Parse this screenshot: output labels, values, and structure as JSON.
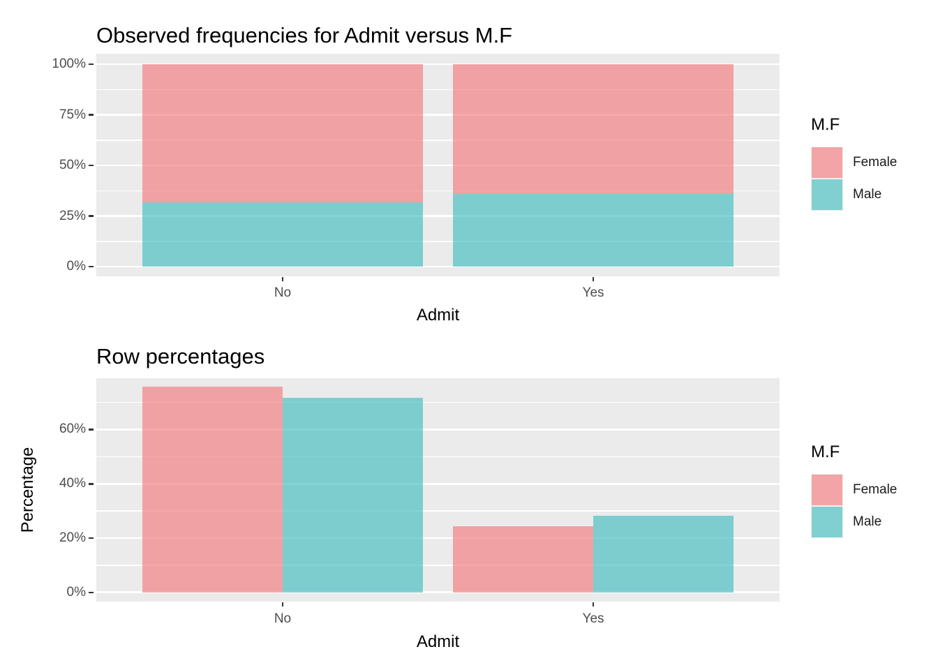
{
  "chart_data": [
    {
      "type": "bar",
      "subtype": "stacked_filled_100",
      "title": "Observed frequencies for Admit versus M.F",
      "xlabel": "Admit",
      "ylabel": "",
      "categories": [
        "No",
        "Yes"
      ],
      "series": [
        {
          "name": "Female",
          "color": "#F37A7C",
          "values": [
            68.2,
            64.0
          ]
        },
        {
          "name": "Male",
          "color": "#42BDC0",
          "values": [
            31.8,
            36.0
          ]
        }
      ],
      "stack_bottom_to_top": [
        "Male",
        "Female"
      ],
      "units": "percent",
      "y_ticks": [
        {
          "value": 0,
          "label": "0%"
        },
        {
          "value": 25,
          "label": "25%"
        },
        {
          "value": 50,
          "label": "50%"
        },
        {
          "value": 75,
          "label": "75%"
        },
        {
          "value": 100,
          "label": "100%"
        }
      ],
      "y_minor_ticks": [
        12.5,
        37.5,
        62.5,
        87.5
      ],
      "ylim": [
        -4.8,
        105.2
      ],
      "grid": true,
      "legend": {
        "title": "M.F",
        "position": "right",
        "items": [
          {
            "label": "Female",
            "series": "Female"
          },
          {
            "label": "Male",
            "series": "Male"
          }
        ]
      }
    },
    {
      "type": "bar",
      "subtype": "grouped",
      "title": "Row percentages",
      "xlabel": "Admit",
      "ylabel": "Percentage",
      "categories": [
        "No",
        "Yes"
      ],
      "series": [
        {
          "name": "Female",
          "color": "#F37A7C",
          "values": [
            75.7,
            24.3
          ]
        },
        {
          "name": "Male",
          "color": "#42BDC0",
          "values": [
            71.8,
            28.2
          ]
        }
      ],
      "units": "percent",
      "y_ticks": [
        {
          "value": 0,
          "label": "0%"
        },
        {
          "value": 20,
          "label": "20%"
        },
        {
          "value": 40,
          "label": "40%"
        },
        {
          "value": 60,
          "label": "60%"
        }
      ],
      "y_minor_ticks": [
        10,
        30,
        50,
        70
      ],
      "ylim": [
        -3.4,
        78.9
      ],
      "grid": true,
      "legend": {
        "title": "M.F",
        "position": "right",
        "items": [
          {
            "label": "Female",
            "series": "Female"
          },
          {
            "label": "Male",
            "series": "Male"
          }
        ]
      }
    }
  ],
  "colors": {
    "panel_background": "#EBEBEB",
    "gridline": "#FFFFFF",
    "tick_label": "#4D4D4D",
    "text": "#000000",
    "legend_key_background": "#F2F2F2",
    "fill_alpha": 0.65
  }
}
